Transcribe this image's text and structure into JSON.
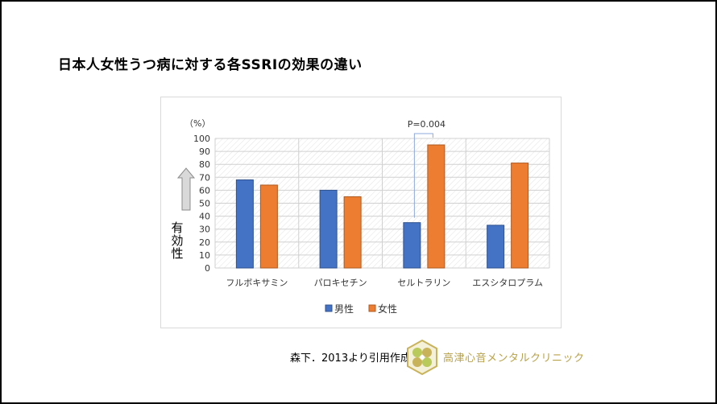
{
  "title": "日本人女性うつ病に対する各SSRIの効果の違い",
  "credit": "森下．2013より引用作成",
  "clinic_name": "高津心音メンタルクリニック",
  "colors": {
    "male": "#4472c4",
    "female": "#ed7d31",
    "clinic": "#b8a24a"
  },
  "chart_data": {
    "type": "bar",
    "unit_label": "（%）",
    "ylabel": "有効性",
    "categories": [
      "フルボキサミン",
      "パロキセチン",
      "セルトラリン",
      "エスシタロプラム"
    ],
    "series": [
      {
        "name": "男性",
        "values": [
          68,
          60,
          35,
          33
        ]
      },
      {
        "name": "女性",
        "values": [
          64,
          55,
          95,
          81
        ]
      }
    ],
    "ylim": [
      0,
      100
    ],
    "yticks": [
      0,
      10,
      20,
      30,
      40,
      50,
      60,
      70,
      80,
      90,
      100
    ],
    "annotation": "P=0.004",
    "legend_position": "bottom",
    "grid": true
  }
}
